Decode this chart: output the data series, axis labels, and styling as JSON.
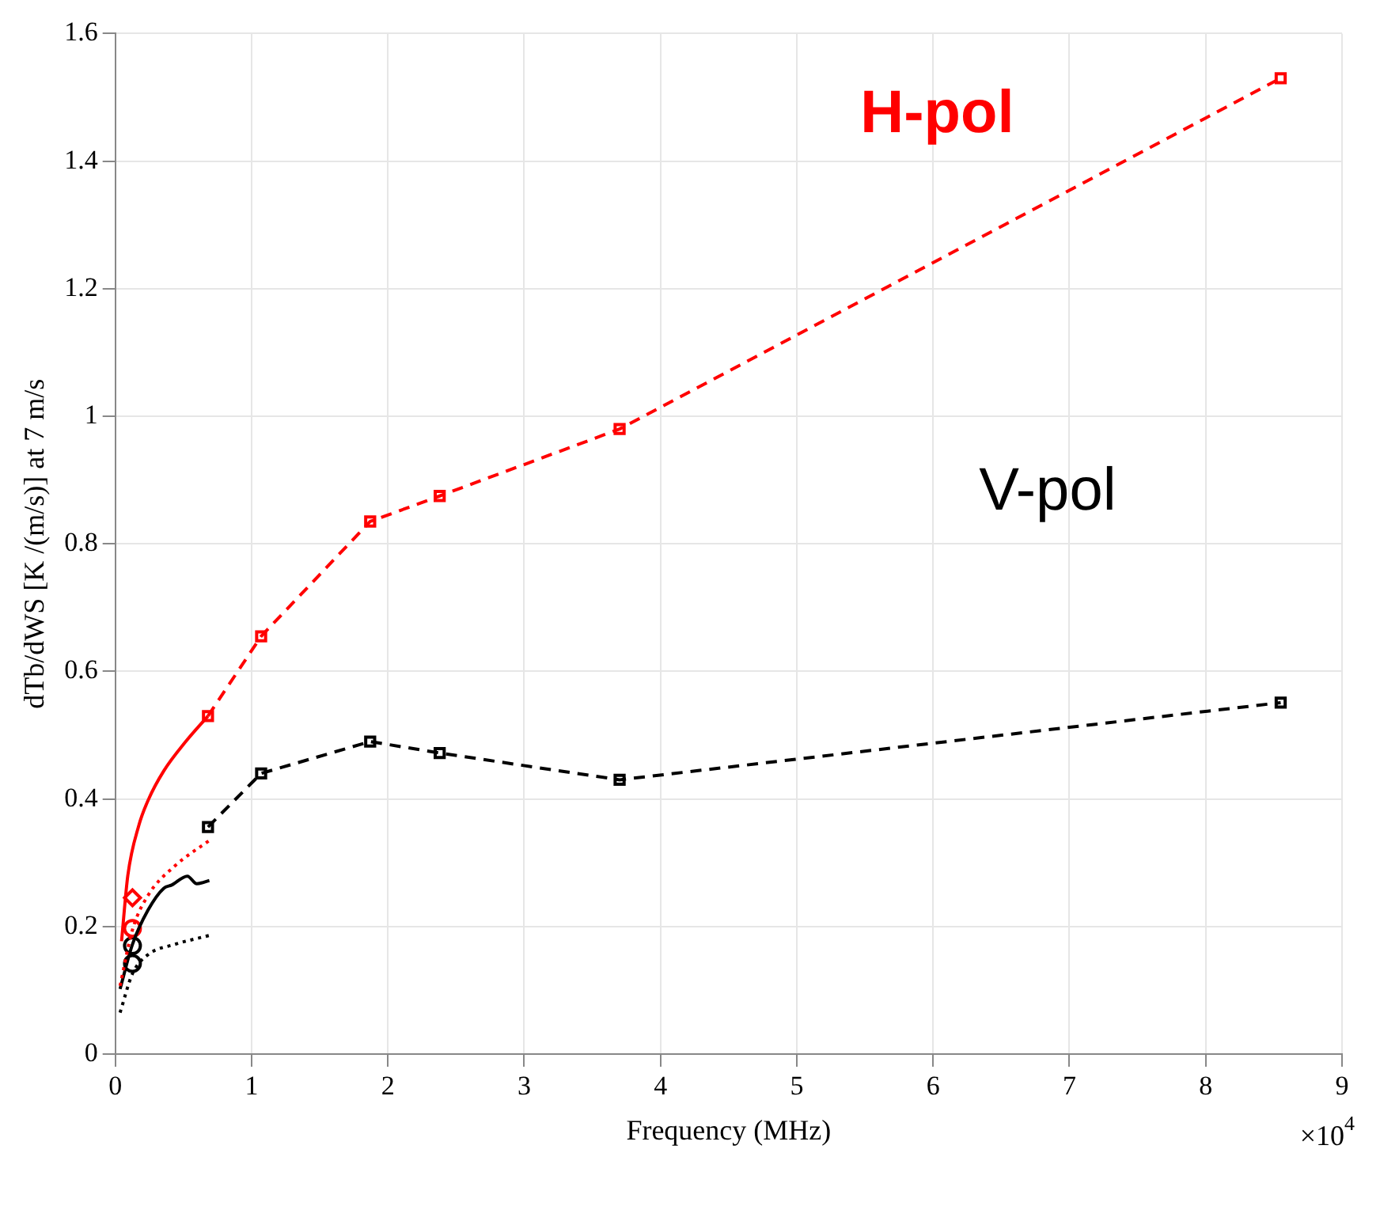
{
  "chart_data": {
    "type": "line",
    "xlabel": "Frequency (MHz)",
    "ylabel": "dTb/dWS [K /(m/s)] at 7 m/s",
    "xlim": [
      0,
      9
    ],
    "xticks": [
      0,
      1,
      2,
      3,
      4,
      5,
      6,
      7,
      8,
      9
    ],
    "ylim": [
      0,
      1.6
    ],
    "yticks": [
      0,
      0.2,
      0.4,
      0.6,
      0.8,
      1,
      1.2,
      1.4,
      1.6
    ],
    "grid": true,
    "legend": false,
    "annotations": [
      "×10$^{4}$"
    ],
    "series": [
      {
        "name": "H-pol",
        "color": "#ff0000",
        "line_style": "dashed",
        "marker": "square",
        "x": [
          0.68,
          1.07,
          1.87,
          2.38,
          3.7,
          8.55
        ],
        "values": [
          0.53,
          0.655,
          0.835,
          0.875,
          0.98,
          1.53
        ]
      },
      {
        "name": "V-pol",
        "color": "#000000",
        "line_style": "dashed",
        "marker": "square",
        "x": [
          0.68,
          1.07,
          1.87,
          2.38,
          3.7,
          8.55
        ],
        "values": [
          0.356,
          0.44,
          0.49,
          0.472,
          0.43,
          0.551
        ]
      },
      {
        "color": "#ff0000",
        "line_style": "solid",
        "marker": "none",
        "x": [
          0.046,
          0.092,
          0.172,
          0.241,
          0.356,
          0.517,
          0.68
        ],
        "values": [
          0.177,
          0.28,
          0.358,
          0.398,
          0.444,
          0.49,
          0.53
        ]
      },
      {
        "color": "#ff0000",
        "line_style": "dotted",
        "marker": "none",
        "x": [
          0.035,
          0.126,
          0.241,
          0.437,
          0.69
        ],
        "values": [
          0.107,
          0.195,
          0.249,
          0.295,
          0.335
        ]
      },
      {
        "color": "#000000",
        "line_style": "solid",
        "marker": "none",
        "x": [
          0.035,
          0.126,
          0.241,
          0.356,
          0.414,
          0.529,
          0.598,
          0.69
        ],
        "values": [
          0.102,
          0.172,
          0.226,
          0.26,
          0.265,
          0.279,
          0.267,
          0.272
        ]
      },
      {
        "color": "#000000",
        "line_style": "dotted",
        "marker": "none",
        "x": [
          0.035,
          0.126,
          0.241,
          0.437,
          0.69
        ],
        "values": [
          0.065,
          0.126,
          0.156,
          0.172,
          0.186
        ]
      },
      {
        "type": "scatter",
        "color": "#ff0000",
        "marker": "diamond",
        "x": [
          0.126
        ],
        "values": [
          0.245
        ]
      },
      {
        "type": "scatter",
        "color": "#ff0000",
        "marker": "circle",
        "x": [
          0.126
        ],
        "values": [
          0.197
        ]
      },
      {
        "type": "scatter",
        "color": "#000000",
        "marker": "circle",
        "x": [
          0.126,
          0.126
        ],
        "values": [
          0.17,
          0.142
        ]
      }
    ]
  }
}
